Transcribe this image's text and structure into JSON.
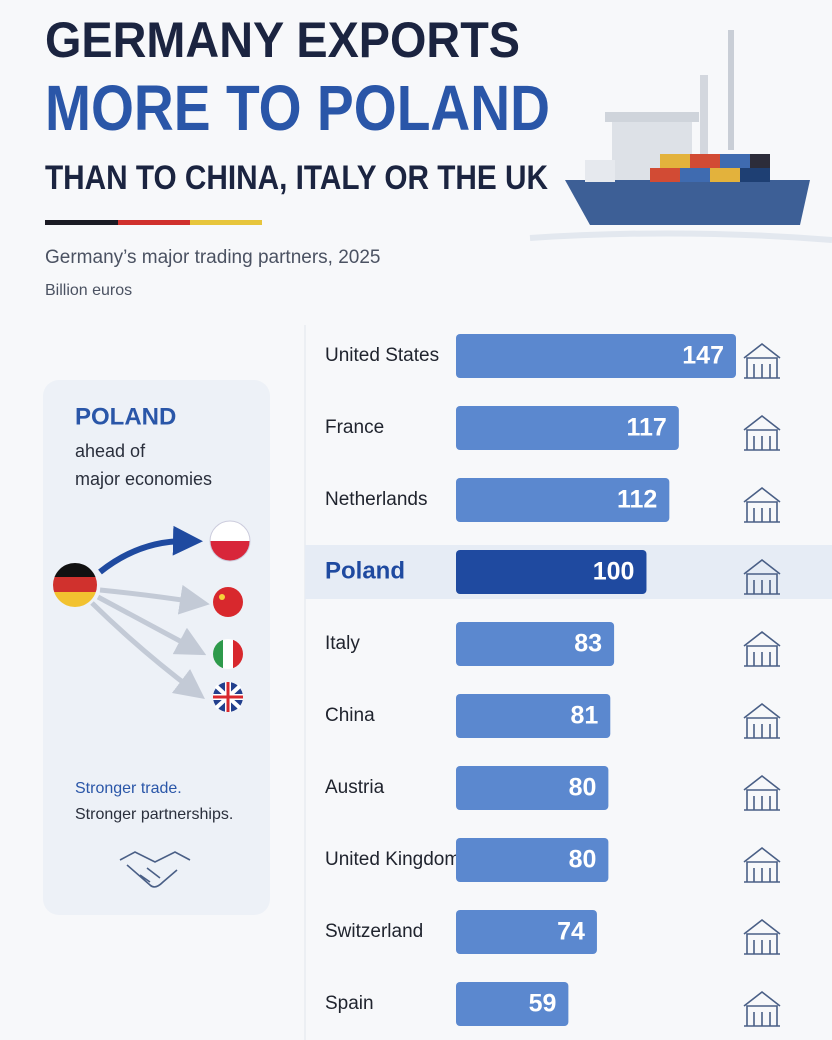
{
  "chart_data": {
    "type": "bar",
    "orientation": "horizontal",
    "title": [
      "GERMANY EXPORTS",
      "MORE TO POLAND",
      "THAN TO CHINA, ITALY OR THE UK"
    ],
    "subtitle": "Germany’s major trading partners, 2025",
    "unit": "Billion euros",
    "categories": [
      "United States",
      "France",
      "Netherlands",
      "Poland",
      "Italy",
      "China",
      "Austria",
      "United Kingdom",
      "Switzerland",
      "Spain"
    ],
    "values": [
      147,
      117,
      112,
      100,
      83,
      81,
      80,
      80,
      74,
      59
    ],
    "colors": [
      "#5b88cf",
      "#5b88cf",
      "#5b88cf",
      "#1f4aa0",
      "#5b88cf",
      "#5b88cf",
      "#5b88cf",
      "#5b88cf",
      "#5b88cf",
      "#5b88cf"
    ]
  },
  "panel": {
    "heading": "POLAND",
    "lines": [
      "ahead of",
      "major economies"
    ],
    "footer": [
      "Stronger trade.",
      "Stronger partnerships."
    ]
  }
}
